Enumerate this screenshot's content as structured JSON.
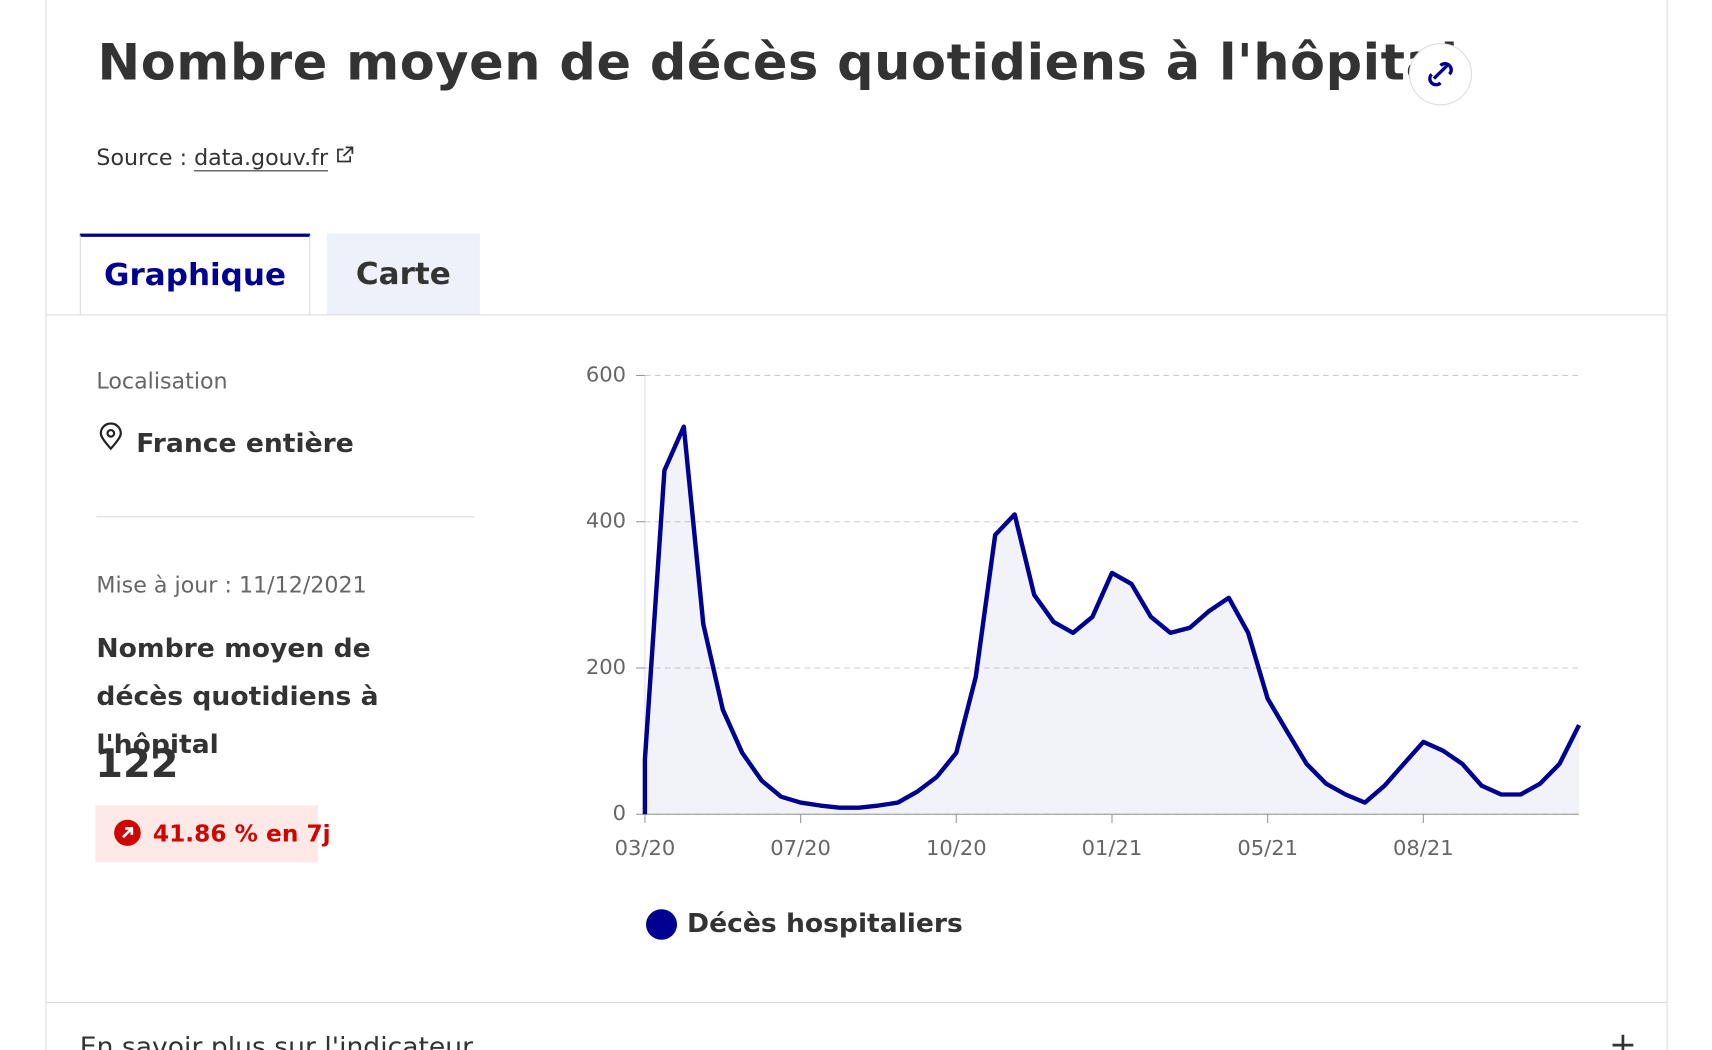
{
  "header": {
    "title": "Nombre moyen de décès quotidiens à l'hôpital",
    "source_label": "Source :",
    "source_link": "data.gouv.fr"
  },
  "tabs": [
    "Graphique",
    "Carte"
  ],
  "sidebar": {
    "location_label": "Localisation",
    "location": "France entière",
    "updated": "Mise à jour : 11/12/2021",
    "indicator_title": "Nombre moyen de décès quotidiens à l'hôpital",
    "value": 122,
    "change": "41.86 % en 7j"
  },
  "chart_data": {
    "type": "line",
    "categories": [
      "03/20",
      null,
      null,
      null,
      null,
      null,
      null,
      null,
      "07/20",
      null,
      null,
      null,
      null,
      null,
      null,
      null,
      "10/20",
      null,
      null,
      null,
      null,
      null,
      null,
      null,
      "01/21",
      null,
      null,
      null,
      null,
      null,
      null,
      null,
      "05/21",
      null,
      null,
      null,
      null,
      null,
      null,
      null,
      "08/21",
      null,
      null,
      null,
      null,
      null,
      null,
      null,
      null
    ],
    "series": [
      {
        "name": "Décès hospitaliers",
        "color": "#000091",
        "values": [
          75,
          470,
          530,
          260,
          143,
          84,
          46,
          24,
          16,
          12,
          9,
          9,
          12,
          16,
          31,
          51,
          84,
          188,
          382,
          410,
          300,
          263,
          248,
          270,
          330,
          315,
          270,
          248,
          255,
          278,
          296,
          248,
          158,
          113,
          69,
          42,
          27,
          16,
          39,
          69,
          99,
          87,
          69,
          39,
          27,
          27,
          42,
          69,
          122
        ]
      }
    ],
    "ylim": [
      0,
      600
    ],
    "yticks": [
      0,
      200,
      400,
      600
    ],
    "grid": true,
    "area": true
  },
  "footer": {
    "more": "En savoir plus sur l'indicateur"
  }
}
